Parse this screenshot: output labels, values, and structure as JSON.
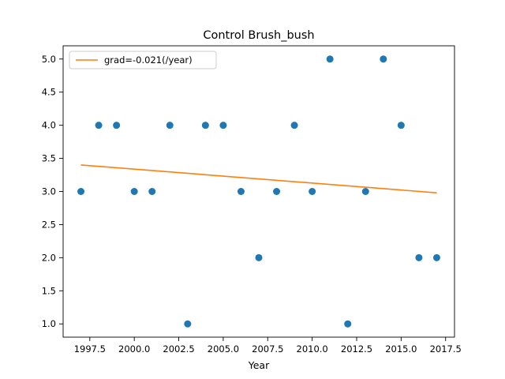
{
  "chart_data": {
    "type": "scatter",
    "title": "Control Brush_bush",
    "xlabel": "Year",
    "ylabel": "",
    "xlim": [
      1996.0,
      2018.0
    ],
    "ylim": [
      0.8,
      5.2
    ],
    "xticks": [
      1997.5,
      2000.0,
      2002.5,
      2005.0,
      2007.5,
      2010.0,
      2012.5,
      2015.0,
      2017.5
    ],
    "xtick_labels": [
      "1997.5",
      "2000.0",
      "2002.5",
      "2005.0",
      "2007.5",
      "2010.0",
      "2012.5",
      "2015.0",
      "2017.5"
    ],
    "yticks": [
      1.0,
      1.5,
      2.0,
      2.5,
      3.0,
      3.5,
      4.0,
      4.5,
      5.0
    ],
    "ytick_labels": [
      "1.0",
      "1.5",
      "2.0",
      "2.5",
      "3.0",
      "3.5",
      "4.0",
      "4.5",
      "5.0"
    ],
    "grid": false,
    "legend_position": "top-left",
    "series": [
      {
        "kind": "scatter",
        "color": "#1f77b4",
        "x": [
          1997,
          1998,
          1999,
          2000,
          2001,
          2002,
          2003,
          2004,
          2005,
          2006,
          2007,
          2008,
          2009,
          2010,
          2011,
          2012,
          2013,
          2014,
          2015,
          2016,
          2017
        ],
        "y": [
          3,
          4,
          4,
          3,
          3,
          4,
          1,
          4,
          4,
          3,
          2,
          3,
          4,
          3,
          5,
          1,
          3,
          5,
          4,
          2,
          2
        ]
      },
      {
        "kind": "line",
        "name": "grad=-0.021(/year)",
        "color": "#ff7f0e",
        "x": [
          1997,
          2017
        ],
        "y": [
          3.4,
          2.98
        ]
      }
    ]
  }
}
